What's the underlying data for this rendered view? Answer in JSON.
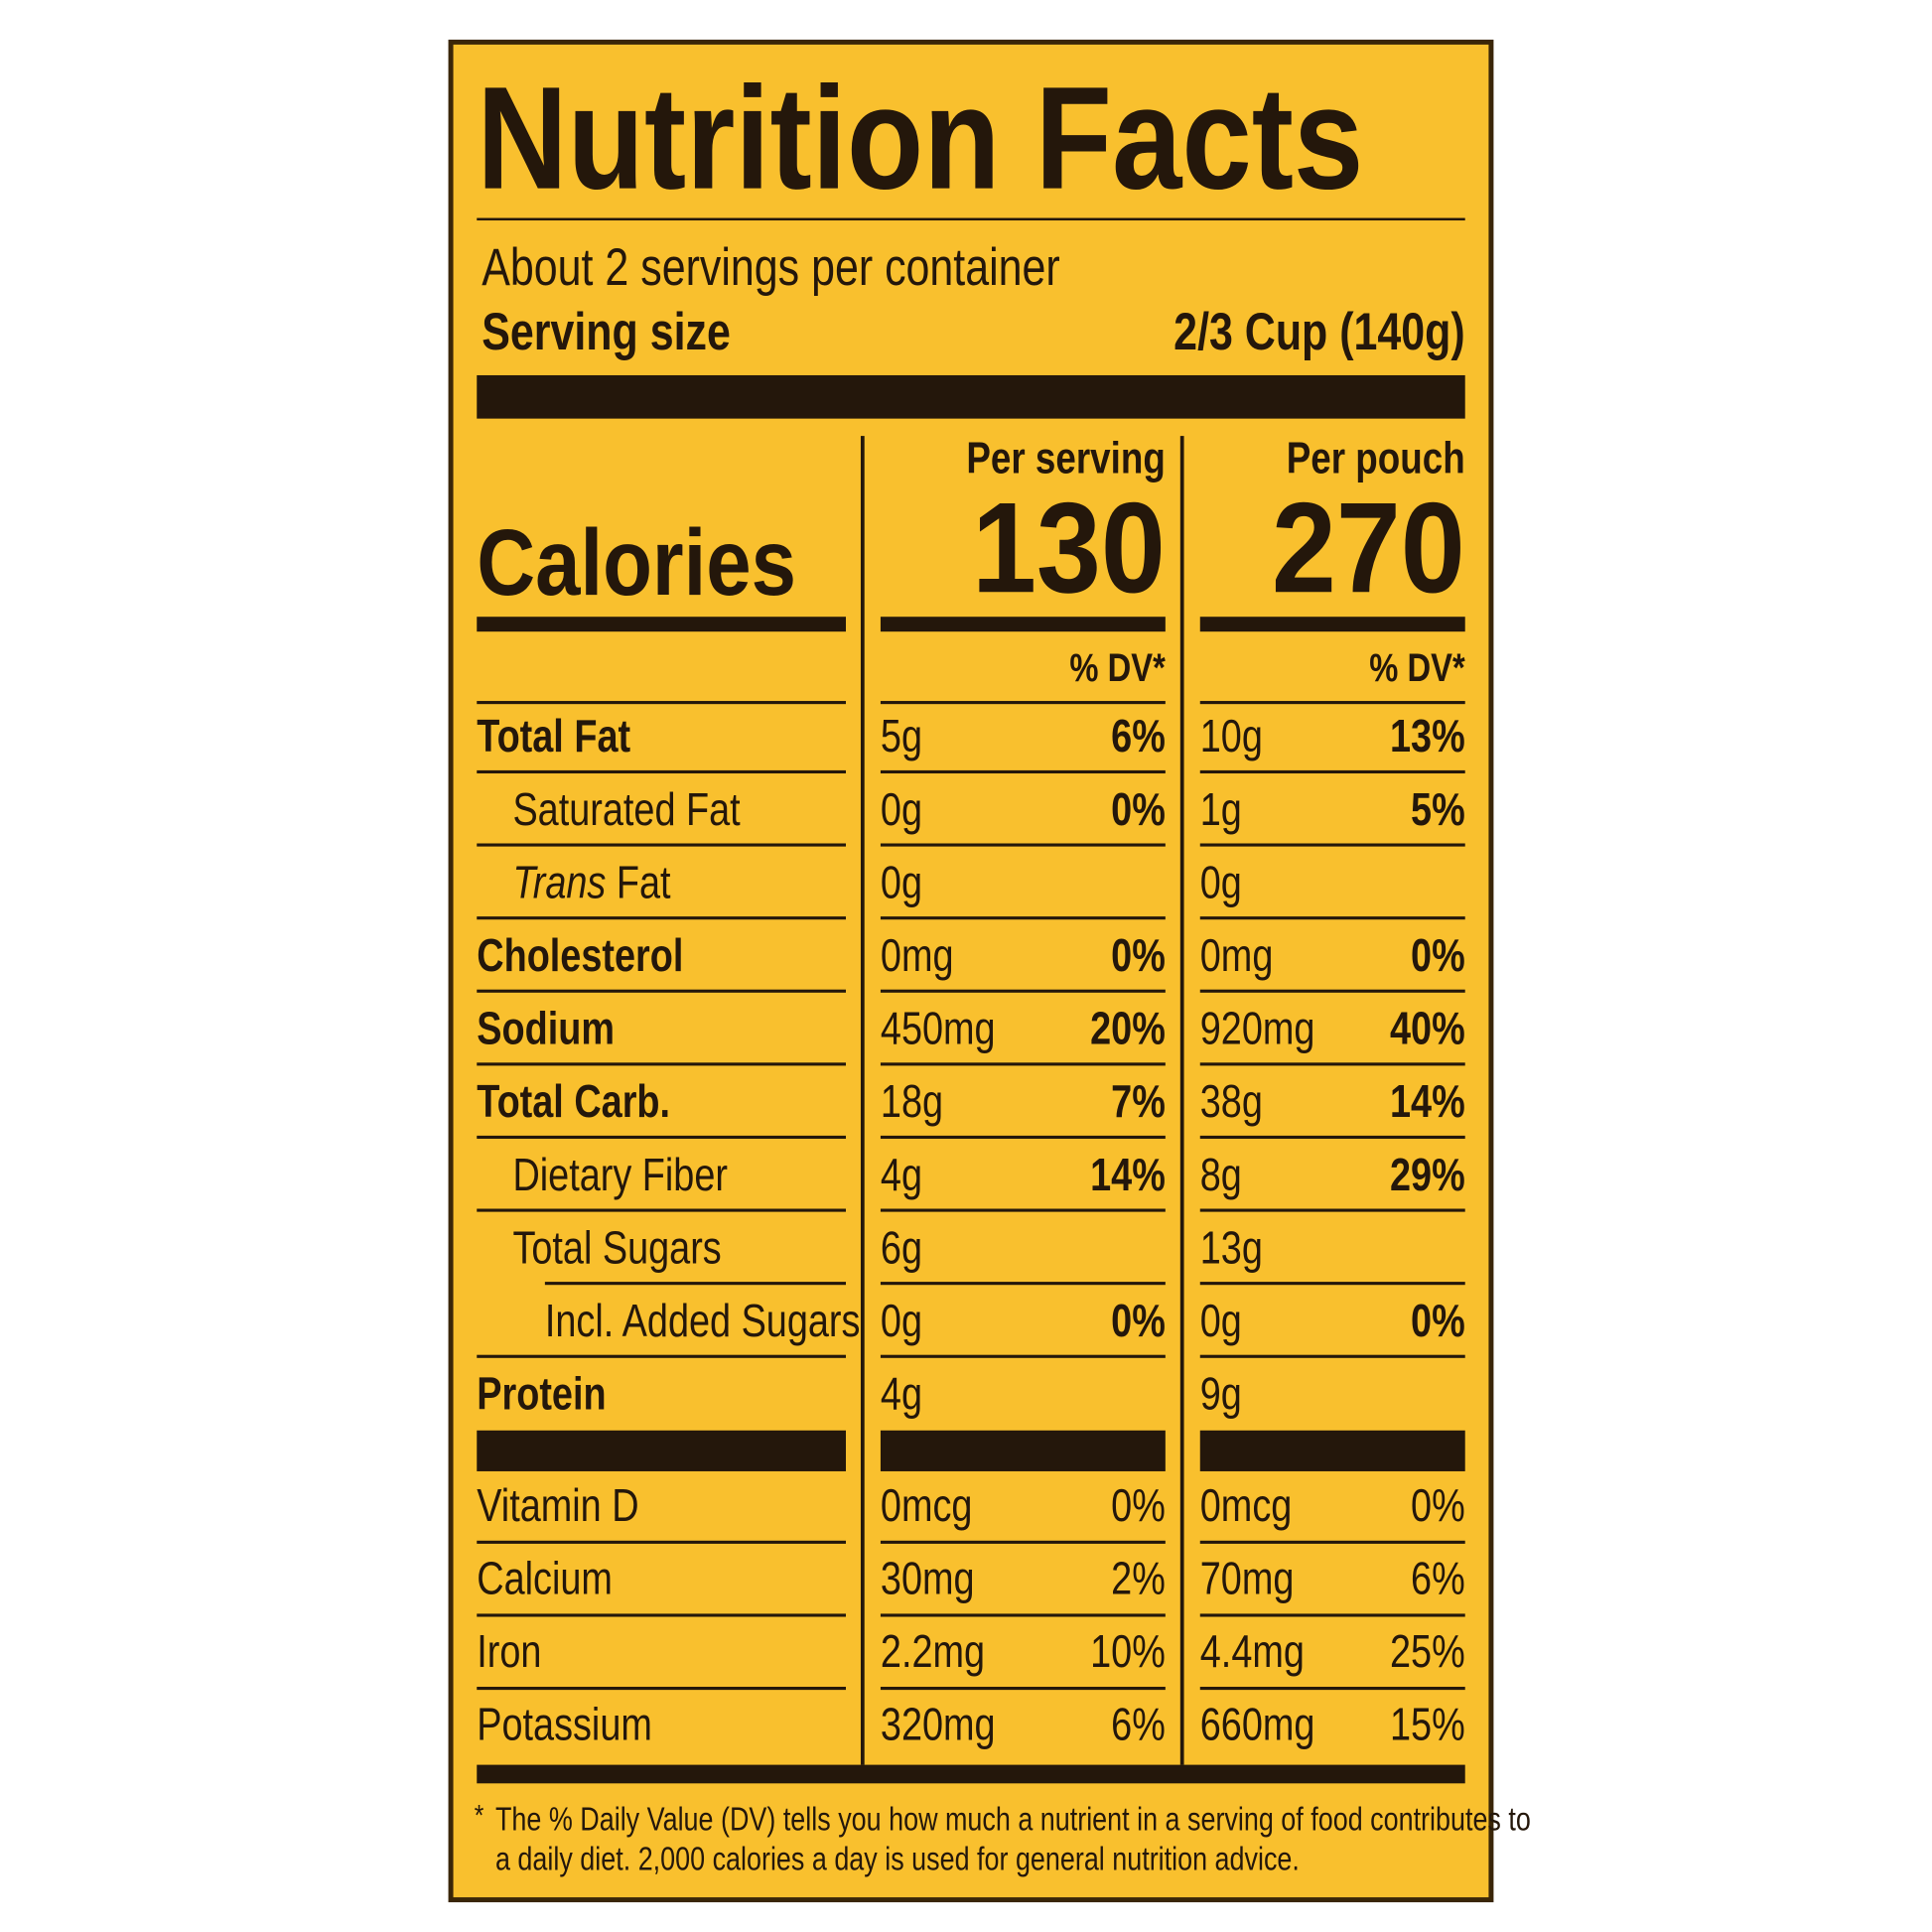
{
  "title": "Nutrition Facts",
  "servings": "About 2 servings per container",
  "serving_size": {
    "label": "Serving size",
    "value": "2/3 Cup (140g)"
  },
  "columns": [
    "Per serving",
    "Per pouch"
  ],
  "calories": {
    "label": "Calories",
    "values": [
      "130",
      "270"
    ]
  },
  "dv_headers": [
    "% DV*",
    "% DV*"
  ],
  "nutrients": [
    {
      "name": "Total Fat",
      "bold": true,
      "indent": 0,
      "values": [
        [
          "5g",
          "6%"
        ],
        [
          "10g",
          "13%"
        ]
      ]
    },
    {
      "name": "Saturated Fat",
      "bold": false,
      "indent": 1,
      "values": [
        [
          "0g",
          "0%"
        ],
        [
          "1g",
          "5%"
        ]
      ]
    },
    {
      "name_italic": "Trans",
      "name": " Fat",
      "bold": false,
      "indent": 1,
      "values": [
        [
          "0g"
        ],
        [
          "0g"
        ]
      ]
    },
    {
      "name": "Cholesterol",
      "bold": true,
      "indent": 0,
      "values": [
        [
          "0mg",
          "0%"
        ],
        [
          "0mg",
          "0%"
        ]
      ]
    },
    {
      "name": "Sodium",
      "bold": true,
      "indent": 0,
      "values": [
        [
          "450mg",
          "20%"
        ],
        [
          "920mg",
          "40%"
        ]
      ]
    },
    {
      "name": "Total Carb.",
      "bold": true,
      "indent": 0,
      "values": [
        [
          "18g",
          "7%"
        ],
        [
          "38g",
          "14%"
        ]
      ]
    },
    {
      "name": "Dietary Fiber",
      "bold": false,
      "indent": 1,
      "values": [
        [
          "4g",
          "14%"
        ],
        [
          "8g",
          "29%"
        ]
      ]
    },
    {
      "name": "Total Sugars",
      "bold": false,
      "indent": 1,
      "values": [
        [
          "6g"
        ],
        [
          "13g"
        ]
      ]
    },
    {
      "name": "Incl. Added Sugars",
      "bold": false,
      "indent": 2,
      "values": [
        [
          "0g",
          "0%"
        ],
        [
          "0g",
          "0%"
        ]
      ]
    },
    {
      "name": "Protein",
      "bold": true,
      "indent": 0,
      "values": [
        [
          "4g"
        ],
        [
          "9g"
        ]
      ]
    }
  ],
  "vitamins": [
    {
      "name": "Vitamin D",
      "values": [
        [
          "0mcg",
          "0%"
        ],
        [
          "0mcg",
          "0%"
        ]
      ]
    },
    {
      "name": "Calcium",
      "values": [
        [
          "30mg",
          "2%"
        ],
        [
          "70mg",
          "6%"
        ]
      ]
    },
    {
      "name": "Iron",
      "values": [
        [
          "2.2mg",
          "10%"
        ],
        [
          "4.4mg",
          "25%"
        ]
      ]
    },
    {
      "name": "Potassium",
      "values": [
        [
          "320mg",
          "6%"
        ],
        [
          "660mg",
          "15%"
        ]
      ]
    }
  ],
  "footnote_mark": "*",
  "footnote": [
    "The % Daily Value (DV) tells you how much a nutrient in a serving of food contributes to",
    "a daily diet. 2,000 calories a day is used for general nutrition advice."
  ]
}
